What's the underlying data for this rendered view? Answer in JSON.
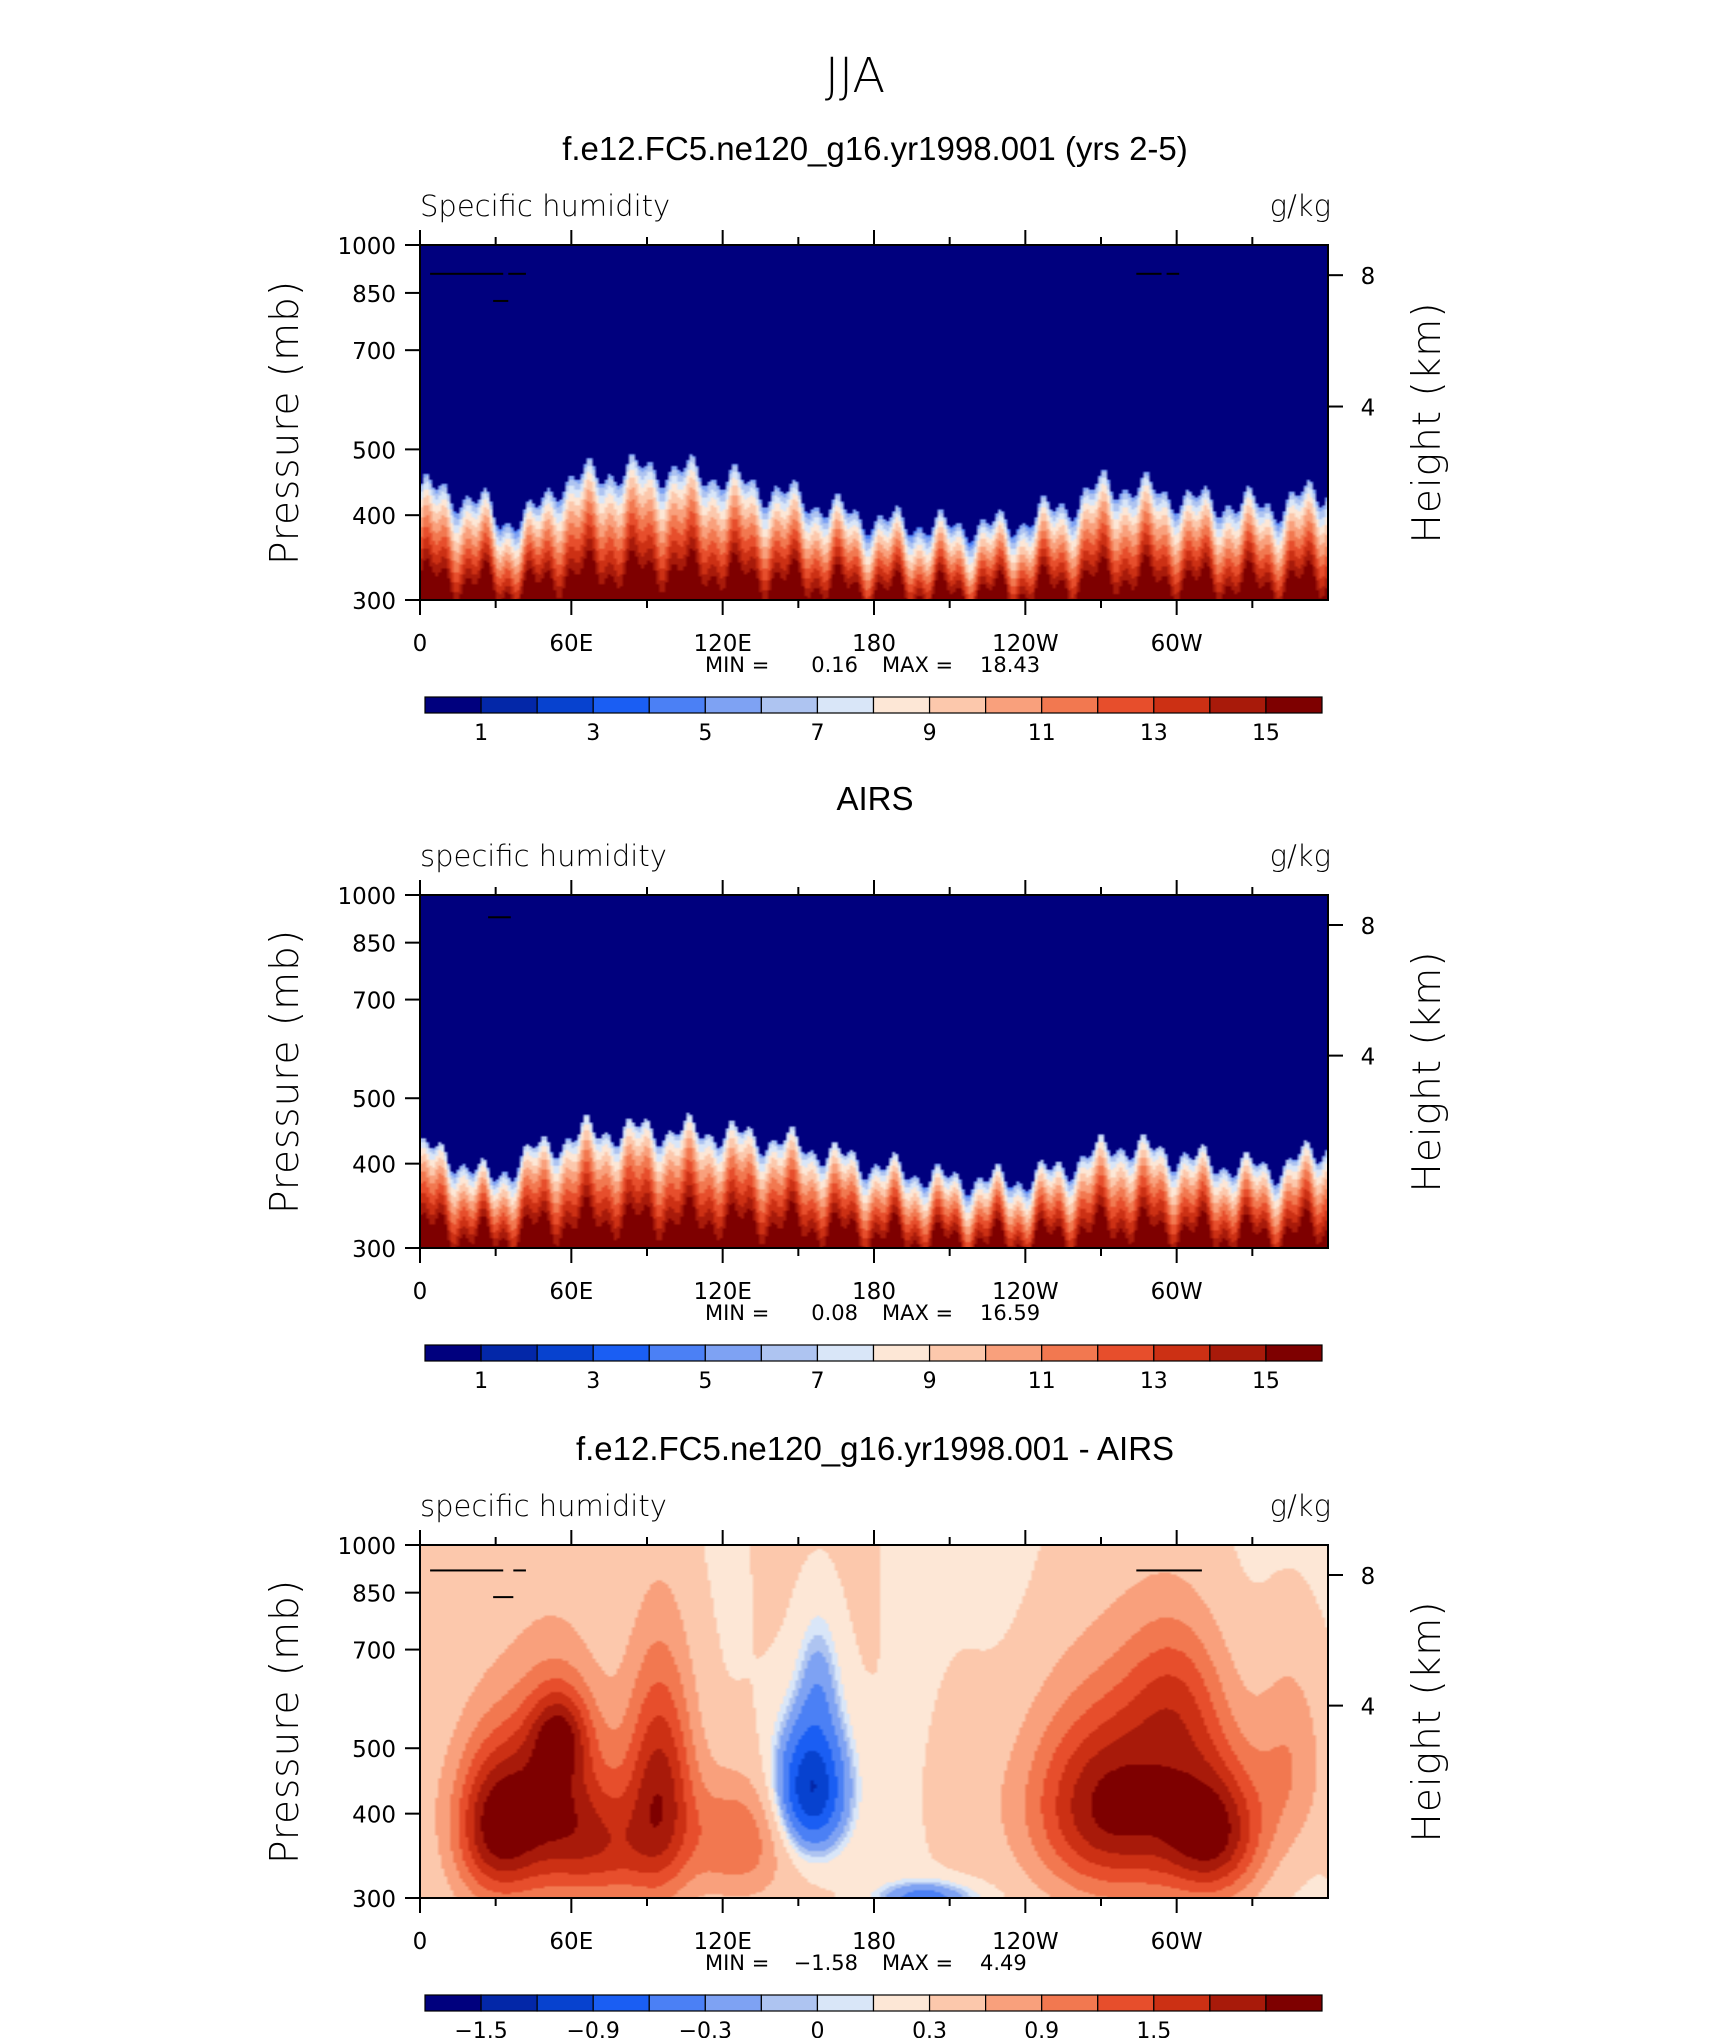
{
  "figure_title": "JJA",
  "colorbar_colors_abs": [
    "#00007e",
    "#0327a8",
    "#0742cf",
    "#1a5ef3",
    "#4b80f5",
    "#7ea2f3",
    "#aec4f1",
    "#d9e6f8",
    "#fde7d6",
    "#fcc8ac",
    "#f9a07c",
    "#f27850",
    "#e74e2c",
    "#cc3014",
    "#a81a0a",
    "#7e0000"
  ],
  "colorbar_colors_diff": [
    "#00007e",
    "#0327a8",
    "#0742cf",
    "#1a5ef3",
    "#4b80f5",
    "#7ea2f3",
    "#aec4f1",
    "#d9e6f8",
    "#fde7d6",
    "#fcc8ac",
    "#f9a07c",
    "#f27850",
    "#e74e2c",
    "#cc3014",
    "#a81a0a",
    "#7e0000"
  ],
  "land_mask_color": "#000000",
  "chart_data": [
    {
      "type": "heatmap",
      "title": "f.e12.FC5.ne120_g16.yr1998.001 (yrs 2-5)",
      "left_label": "Specific humidity",
      "right_label": "g/kg",
      "xlabel": "",
      "ylabel": "Pressure (mb)",
      "y2label": "Height (km)",
      "x_ticks": [
        "0",
        "60E",
        "120E",
        "180",
        "120W",
        "60W"
      ],
      "x_range_deg_east": [
        0,
        360
      ],
      "y_ticks": [
        "300",
        "400",
        "500",
        "700",
        "850",
        "1000"
      ],
      "y_range_mb": [
        300,
        1000
      ],
      "y2_ticks": [
        "8",
        "4"
      ],
      "min_label": "MIN =",
      "min": "0.16",
      "max_label": "MAX =",
      "max": "18.43",
      "colorbar_labels": [
        "1",
        "3",
        "5",
        "7",
        "9",
        "11",
        "13",
        "15"
      ],
      "colorbar_levels": [
        0.5,
        1,
        2,
        3,
        4,
        5,
        6,
        7,
        8,
        9,
        10,
        11,
        12,
        13,
        14,
        15
      ],
      "field": "abs",
      "boundaries_q": [
        0.9,
        1.5,
        2.1,
        2.8,
        3.6,
        4.4,
        5.2,
        6.0,
        6.8,
        7.6,
        8.4,
        9.2,
        10.0,
        10.8,
        11.6
      ],
      "boundary_slope": [
        0.17,
        0.38,
        0.55,
        0.7,
        0.8,
        0.86,
        0.9,
        0.94,
        0.98,
        1.0,
        1.0,
        1.0,
        1.0,
        0.99,
        0.98
      ],
      "boundary_lon_profile": [
        [
          0,
          0.55
        ],
        [
          15,
          0.45
        ],
        [
          25,
          0.32
        ],
        [
          32,
          0.05
        ],
        [
          45,
          0.15
        ],
        [
          55,
          0.65
        ],
        [
          75,
          0.8
        ],
        [
          95,
          0.85
        ],
        [
          120,
          0.72
        ],
        [
          150,
          0.4
        ],
        [
          180,
          0.05
        ],
        [
          210,
          -0.05
        ],
        [
          235,
          0.0
        ],
        [
          260,
          0.35
        ],
        [
          272,
          0.62
        ],
        [
          285,
          0.55
        ],
        [
          310,
          0.35
        ],
        [
          340,
          0.28
        ],
        [
          360,
          0.55
        ]
      ],
      "land_mask": [
        [
          4,
          33,
          910,
          1000
        ],
        [
          29,
          35,
          830,
          1000
        ],
        [
          35,
          42,
          910,
          1000
        ],
        [
          284,
          294,
          910,
          1000
        ],
        [
          296,
          301,
          910,
          1000
        ]
      ]
    },
    {
      "type": "heatmap",
      "title": "AIRS",
      "left_label": "specific humidity",
      "right_label": "g/kg",
      "xlabel": "",
      "ylabel": "Pressure (mb)",
      "y2label": "Height (km)",
      "x_ticks": [
        "0",
        "60E",
        "120E",
        "180",
        "120W",
        "60W"
      ],
      "x_range_deg_east": [
        0,
        360
      ],
      "y_ticks": [
        "300",
        "400",
        "500",
        "700",
        "850",
        "1000"
      ],
      "y_range_mb": [
        300,
        1000
      ],
      "y2_ticks": [
        "8",
        "4"
      ],
      "min_label": "MIN =",
      "min": "0.08",
      "max_label": "MAX =",
      "max": "16.59",
      "colorbar_labels": [
        "1",
        "3",
        "5",
        "7",
        "9",
        "11",
        "13",
        "15"
      ],
      "colorbar_levels": [
        0.5,
        1,
        2,
        3,
        4,
        5,
        6,
        7,
        8,
        9,
        10,
        11,
        12,
        13,
        14,
        15
      ],
      "field": "abs",
      "boundaries_q": [
        1.0,
        1.6,
        2.3,
        3.1,
        3.9,
        4.7,
        5.5,
        6.3,
        7.1,
        7.9,
        8.6,
        9.3,
        10.0,
        10.7,
        11.4
      ],
      "boundary_slope": [
        0.05,
        0.3,
        0.45,
        0.6,
        0.72,
        0.8,
        0.86,
        0.9,
        0.94,
        0.97,
        1.0,
        1.0,
        1.0,
        0.99,
        0.98
      ],
      "boundary_lon_profile": [
        [
          0,
          0.5
        ],
        [
          15,
          0.3
        ],
        [
          28,
          -0.05
        ],
        [
          45,
          0.45
        ],
        [
          65,
          0.75
        ],
        [
          90,
          0.8
        ],
        [
          120,
          0.75
        ],
        [
          150,
          0.55
        ],
        [
          180,
          0.2
        ],
        [
          210,
          -0.05
        ],
        [
          240,
          -0.05
        ],
        [
          260,
          0.25
        ],
        [
          275,
          0.55
        ],
        [
          290,
          0.45
        ],
        [
          320,
          0.2
        ],
        [
          340,
          0.15
        ],
        [
          360,
          0.5
        ]
      ],
      "land_mask": [
        [
          27,
          36,
          930,
          1000
        ]
      ]
    },
    {
      "type": "heatmap",
      "title": "f.e12.FC5.ne120_g16.yr1998.001 - AIRS",
      "left_label": "specific humidity",
      "right_label": "g/kg",
      "xlabel": "",
      "ylabel": "Pressure (mb)",
      "y2label": "Height (km)",
      "x_ticks": [
        "0",
        "60E",
        "120E",
        "180",
        "120W",
        "60W"
      ],
      "x_range_deg_east": [
        0,
        360
      ],
      "y_ticks": [
        "300",
        "400",
        "500",
        "700",
        "850",
        "1000"
      ],
      "y_range_mb": [
        300,
        1000
      ],
      "y2_ticks": [
        "8",
        "4"
      ],
      "min_label": "MIN =",
      "min": "−1.58",
      "max_label": "MAX =",
      "max": "4.49",
      "colorbar_labels": [
        "−1.5",
        "−0.9",
        "−0.3",
        "0",
        "0.3",
        "0.9",
        "1.5"
      ],
      "colorbar_levels": [
        -1.8,
        -1.5,
        -1.2,
        -0.9,
        -0.6,
        -0.3,
        -0.1,
        0,
        0.1,
        0.3,
        0.6,
        0.9,
        1.2,
        1.5,
        1.8,
        2.1
      ],
      "field": "diff",
      "diff_baseline": 0.35,
      "diff_blobs": [
        [
          30,
          780,
          12,
          150,
          1.8
        ],
        [
          55,
          720,
          14,
          180,
          1.6
        ],
        [
          55,
          570,
          8,
          60,
          0.9
        ],
        [
          95,
          700,
          10,
          210,
          1.7
        ],
        [
          75,
          850,
          12,
          120,
          0.9
        ],
        [
          125,
          820,
          14,
          120,
          0.9
        ],
        [
          155,
          690,
          10,
          110,
          -1.6
        ],
        [
          158,
          470,
          6,
          80,
          -0.4
        ],
        [
          200,
          1000,
          14,
          40,
          -0.7
        ],
        [
          275,
          730,
          24,
          170,
          1.9
        ],
        [
          315,
          800,
          14,
          140,
          1.7
        ],
        [
          300,
          500,
          14,
          100,
          0.8
        ],
        [
          345,
          620,
          10,
          150,
          0.6
        ],
        [
          215,
          700,
          10,
          220,
          0.15
        ]
      ],
      "land_mask": [
        [
          4,
          33,
          920,
          1000
        ],
        [
          29,
          37,
          840,
          1000
        ],
        [
          37,
          42,
          920,
          1000
        ],
        [
          284,
          310,
          920,
          1000
        ]
      ]
    }
  ]
}
